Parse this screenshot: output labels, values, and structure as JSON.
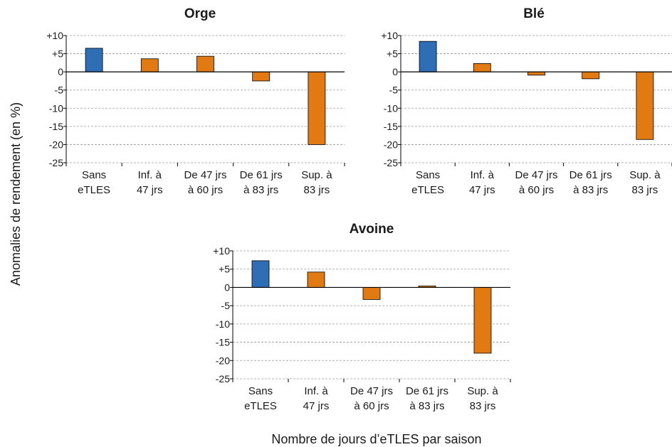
{
  "figure": {
    "ylabel": "Anomalies de rendement (en %)",
    "xlabel": "Nombre de jours d’eTLES par saison"
  },
  "colors": {
    "reference_bar": "#2f6db5",
    "etles_bar": "#e17a12",
    "gridline": "#9a9a9a",
    "axis": "#000000"
  },
  "chart_data": [
    {
      "type": "bar",
      "title": "Orge",
      "categories": [
        [
          "Sans",
          "eTLES"
        ],
        [
          "Inf. à",
          "47 jrs"
        ],
        [
          "De 47 jrs",
          "à 60 jrs"
        ],
        [
          "De 61 jrs",
          "à 83 jrs"
        ],
        [
          "Sup. à",
          "83 jrs"
        ]
      ],
      "values": [
        6.5,
        3.6,
        4.3,
        -2.5,
        -20.0
      ],
      "ylim": [
        -25,
        10
      ],
      "yticks": [
        10,
        5,
        0,
        -5,
        -10,
        -15,
        -20,
        -25
      ],
      "ytick_labels": [
        "+10",
        "+5",
        "0",
        "-5",
        "-10",
        "-15",
        "-20",
        "-25"
      ],
      "grid": true
    },
    {
      "type": "bar",
      "title": "Blé",
      "categories": [
        [
          "Sans",
          "eTLES"
        ],
        [
          "Inf. à",
          "47 jrs"
        ],
        [
          "De 47 jrs",
          "à 60 jrs"
        ],
        [
          "De 61 jrs",
          "à 83 jrs"
        ],
        [
          "Sup. à",
          "83 jrs"
        ]
      ],
      "values": [
        8.4,
        2.3,
        -0.9,
        -1.9,
        -18.6
      ],
      "ylim": [
        -25,
        10
      ],
      "yticks": [
        10,
        5,
        0,
        -5,
        -10,
        -15,
        -20,
        -25
      ],
      "ytick_labels": [
        "+10",
        "+5",
        "0",
        "-5",
        "-10",
        "-15",
        "-20",
        "-25"
      ],
      "grid": true
    },
    {
      "type": "bar",
      "title": "Avoine",
      "categories": [
        [
          "Sans",
          "eTLES"
        ],
        [
          "Inf. à",
          "47 jrs"
        ],
        [
          "De 47 jrs",
          "à 60 jrs"
        ],
        [
          "De 61 jrs",
          "à 83 jrs"
        ],
        [
          "Sup. à",
          "83 jrs"
        ]
      ],
      "values": [
        7.3,
        4.2,
        -3.3,
        0.4,
        -18.0
      ],
      "ylim": [
        -25,
        10
      ],
      "yticks": [
        10,
        5,
        0,
        -5,
        -10,
        -15,
        -20,
        -25
      ],
      "ytick_labels": [
        "+10",
        "+5",
        "0",
        "-5",
        "-10",
        "-15",
        "-20",
        "-25"
      ],
      "grid": true
    }
  ]
}
